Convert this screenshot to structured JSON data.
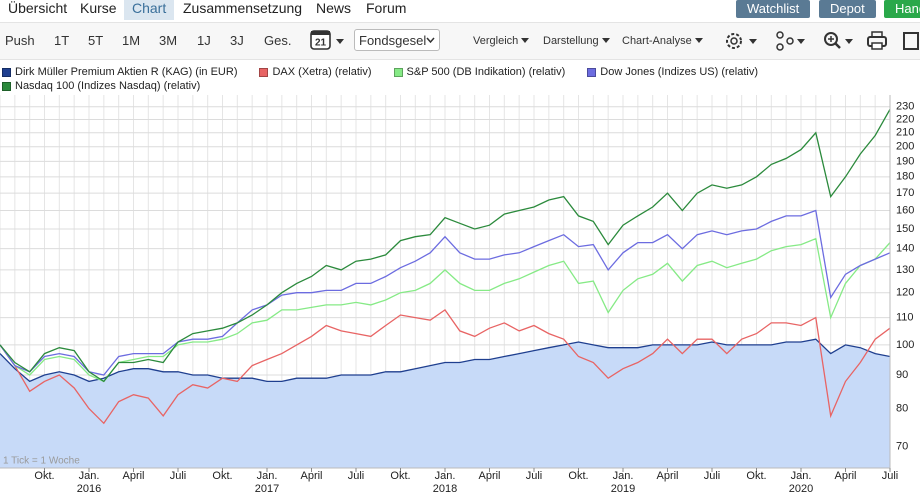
{
  "nav": {
    "tabs": [
      {
        "label": "Übersicht",
        "active": false
      },
      {
        "label": "Kurse",
        "active": false
      },
      {
        "label": "Chart",
        "active": true
      },
      {
        "label": "Zusammensetzung",
        "active": false
      },
      {
        "label": "News",
        "active": false
      },
      {
        "label": "Forum",
        "active": false
      }
    ],
    "buttons": [
      {
        "label": "Watchlist",
        "color": "#5a7a94"
      },
      {
        "label": "Depot",
        "color": "#5a7a94"
      },
      {
        "label": "Handeln",
        "color": "#2aa84a"
      }
    ]
  },
  "toolbar": {
    "periods": [
      "Push",
      "1T",
      "5T",
      "1M",
      "3M",
      "1J",
      "3J",
      "Ges."
    ],
    "calendar_day": "21",
    "fund_select": "Fondsgesel",
    "menus": [
      "Vergleich",
      "Darstellung",
      "Chart-Analyse"
    ]
  },
  "chart_data": {
    "type": "line",
    "log_scale": true,
    "grid": true,
    "annotation": "1 Tick = 1 Woche",
    "x": [
      "2015-07",
      "2015-08",
      "2015-09",
      "2015-10",
      "2015-11",
      "2015-12",
      "2016-01",
      "2016-02",
      "2016-03",
      "2016-04",
      "2016-05",
      "2016-06",
      "2016-07",
      "2016-08",
      "2016-09",
      "2016-10",
      "2016-11",
      "2016-12",
      "2017-01",
      "2017-02",
      "2017-03",
      "2017-04",
      "2017-05",
      "2017-06",
      "2017-07",
      "2017-08",
      "2017-09",
      "2017-10",
      "2017-11",
      "2017-12",
      "2018-01",
      "2018-02",
      "2018-03",
      "2018-04",
      "2018-05",
      "2018-06",
      "2018-07",
      "2018-08",
      "2018-09",
      "2018-10",
      "2018-11",
      "2018-12",
      "2019-01",
      "2019-02",
      "2019-03",
      "2019-04",
      "2019-05",
      "2019-06",
      "2019-07",
      "2019-08",
      "2019-09",
      "2019-10",
      "2019-11",
      "2019-12",
      "2020-01",
      "2020-02",
      "2020-03",
      "2020-04",
      "2020-05",
      "2020-06",
      "2020-07"
    ],
    "xlim": [
      "2015-07",
      "2020-07"
    ],
    "xticks": [
      {
        "value": "2015-10",
        "label": "Okt."
      },
      {
        "value": "2016-01",
        "label": "Jan."
      },
      {
        "value": "2016-04",
        "label": "April"
      },
      {
        "value": "2016-07",
        "label": "Juli"
      },
      {
        "value": "2016-10",
        "label": "Okt."
      },
      {
        "value": "2017-01",
        "label": "Jan."
      },
      {
        "value": "2017-04",
        "label": "April"
      },
      {
        "value": "2017-07",
        "label": "Juli"
      },
      {
        "value": "2017-10",
        "label": "Okt."
      },
      {
        "value": "2018-01",
        "label": "Jan."
      },
      {
        "value": "2018-04",
        "label": "April"
      },
      {
        "value": "2018-07",
        "label": "Juli"
      },
      {
        "value": "2018-10",
        "label": "Okt."
      },
      {
        "value": "2019-01",
        "label": "Jan."
      },
      {
        "value": "2019-04",
        "label": "April"
      },
      {
        "value": "2019-07",
        "label": "Juli"
      },
      {
        "value": "2019-10",
        "label": "Okt."
      },
      {
        "value": "2020-01",
        "label": "Jan."
      },
      {
        "value": "2020-04",
        "label": "April"
      },
      {
        "value": "2020-07",
        "label": "Juli"
      }
    ],
    "year_labels": [
      {
        "value": "2016-01",
        "label": "2016"
      },
      {
        "value": "2017-01",
        "label": "2017"
      },
      {
        "value": "2018-01",
        "label": "2018"
      },
      {
        "value": "2019-01",
        "label": "2019"
      },
      {
        "value": "2020-01",
        "label": "2020"
      }
    ],
    "ylim": [
      65,
      238
    ],
    "yticks": [
      70,
      80,
      90,
      100,
      110,
      120,
      130,
      140,
      150,
      160,
      170,
      180,
      190,
      200,
      210,
      220,
      230
    ],
    "series": [
      {
        "name": "Dirk Müller Premium Aktien R (KAG) (in EUR)",
        "color": "#1f3f8f",
        "fill": "#c7daf8",
        "values": [
          97,
          92,
          88,
          90,
          91,
          90,
          88,
          89,
          91,
          92,
          92,
          91,
          91,
          90,
          90,
          89,
          89,
          89,
          88,
          88,
          89,
          89,
          89,
          90,
          90,
          90,
          91,
          91,
          92,
          93,
          94,
          94,
          95,
          95,
          96,
          97,
          98,
          99,
          100,
          101,
          100,
          99,
          99,
          99,
          100,
          100,
          100,
          100,
          101,
          100,
          100,
          100,
          100,
          101,
          101,
          102,
          97,
          100,
          99,
          97,
          96
        ]
      },
      {
        "name": "DAX (Xetra) (relativ)",
        "color": "#e86464",
        "values": [
          100,
          93,
          85,
          88,
          90,
          86,
          80,
          76,
          82,
          84,
          83,
          78,
          84,
          87,
          86,
          89,
          88,
          93,
          95,
          97,
          100,
          103,
          107,
          105,
          104,
          103,
          107,
          111,
          110,
          109,
          113,
          105,
          103,
          106,
          108,
          105,
          107,
          104,
          102,
          96,
          94,
          89,
          92,
          94,
          97,
          102,
          97,
          102,
          102,
          97,
          102,
          104,
          108,
          108,
          107,
          110,
          78,
          88,
          94,
          102,
          106
        ]
      },
      {
        "name": "S&P 500 (DB Indikation) (relativ)",
        "color": "#86ea86",
        "values": [
          100,
          93,
          90,
          95,
          96,
          95,
          90,
          88,
          94,
          95,
          96,
          96,
          100,
          101,
          101,
          102,
          104,
          108,
          109,
          113,
          113,
          114,
          115,
          115,
          116,
          115,
          117,
          120,
          121,
          124,
          130,
          124,
          121,
          121,
          124,
          126,
          129,
          132,
          134,
          124,
          125,
          112,
          121,
          126,
          128,
          133,
          125,
          132,
          134,
          131,
          133,
          135,
          139,
          141,
          142,
          145,
          110,
          124,
          132,
          135,
          143
        ]
      },
      {
        "name": "Dow Jones (Indizes US) (relativ)",
        "color": "#6c6ce0",
        "values": [
          100,
          93,
          91,
          96,
          97,
          96,
          91,
          90,
          96,
          97,
          97,
          97,
          101,
          102,
          102,
          103,
          108,
          113,
          115,
          119,
          120,
          120,
          121,
          121,
          124,
          124,
          127,
          131,
          134,
          138,
          146,
          138,
          135,
          135,
          137,
          138,
          141,
          144,
          147,
          141,
          142,
          130,
          138,
          143,
          143,
          147,
          140,
          147,
          149,
          147,
          149,
          150,
          154,
          157,
          157,
          160,
          118,
          128,
          132,
          135,
          138
        ]
      },
      {
        "name": "Nasdaq 100 (Indizes Nasdaq) (relativ)",
        "color": "#2b8a3c",
        "values": [
          100,
          94,
          91,
          97,
          99,
          98,
          91,
          88,
          94,
          94,
          95,
          94,
          101,
          104,
          105,
          106,
          108,
          111,
          115,
          120,
          124,
          127,
          132,
          130,
          134,
          135,
          137,
          144,
          146,
          147,
          156,
          153,
          150,
          152,
          158,
          160,
          162,
          166,
          168,
          157,
          154,
          142,
          152,
          157,
          162,
          170,
          160,
          170,
          175,
          173,
          175,
          180,
          188,
          192,
          198,
          210,
          168,
          180,
          195,
          208,
          228
        ]
      }
    ]
  }
}
